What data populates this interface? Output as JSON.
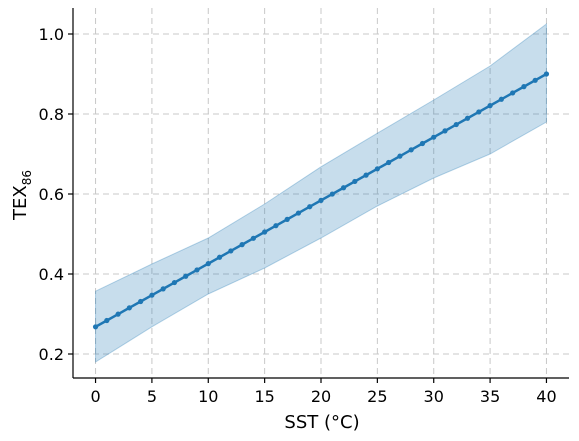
{
  "chart_data": {
    "type": "line",
    "xlabel": "SST (°C)",
    "ylabel": {
      "main": "TEX",
      "sub": "86"
    },
    "xlim": [
      -2,
      42
    ],
    "ylim": [
      0.14,
      1.065
    ],
    "xticks": [
      "0",
      "5",
      "10",
      "15",
      "20",
      "25",
      "30",
      "35",
      "40"
    ],
    "yticks": [
      "0.2",
      "0.4",
      "0.6",
      "0.8",
      "1.0"
    ],
    "grid": true,
    "series": [
      {
        "type": "line-with-markers",
        "color": "#1f77b4",
        "x": [
          0,
          1,
          2,
          3,
          4,
          5,
          6,
          7,
          8,
          9,
          10,
          11,
          12,
          13,
          14,
          15,
          16,
          17,
          18,
          19,
          20,
          21,
          22,
          23,
          24,
          25,
          26,
          27,
          28,
          29,
          30,
          31,
          32,
          33,
          34,
          35,
          36,
          37,
          38,
          39,
          40
        ],
        "y": [
          0.268,
          0.2838,
          0.2996,
          0.3154,
          0.3312,
          0.347,
          0.3628,
          0.3786,
          0.3944,
          0.4102,
          0.426,
          0.4418,
          0.4576,
          0.4734,
          0.4892,
          0.505,
          0.5208,
          0.5366,
          0.5524,
          0.5682,
          0.584,
          0.5998,
          0.6156,
          0.6314,
          0.6472,
          0.663,
          0.6788,
          0.6946,
          0.7104,
          0.7262,
          0.742,
          0.7578,
          0.7736,
          0.7894,
          0.8052,
          0.821,
          0.8368,
          0.8526,
          0.8684,
          0.8842,
          0.9
        ]
      }
    ],
    "band": {
      "color": "#1f77b4",
      "opacity": 0.25,
      "x": [
        0,
        5,
        10,
        15,
        20,
        25,
        30,
        35,
        40
      ],
      "lower": [
        0.18,
        0.268,
        0.35,
        0.415,
        0.49,
        0.57,
        0.64,
        0.7,
        0.78
      ],
      "upper": [
        0.357,
        0.425,
        0.49,
        0.575,
        0.668,
        0.752,
        0.835,
        0.92,
        1.025
      ]
    }
  }
}
